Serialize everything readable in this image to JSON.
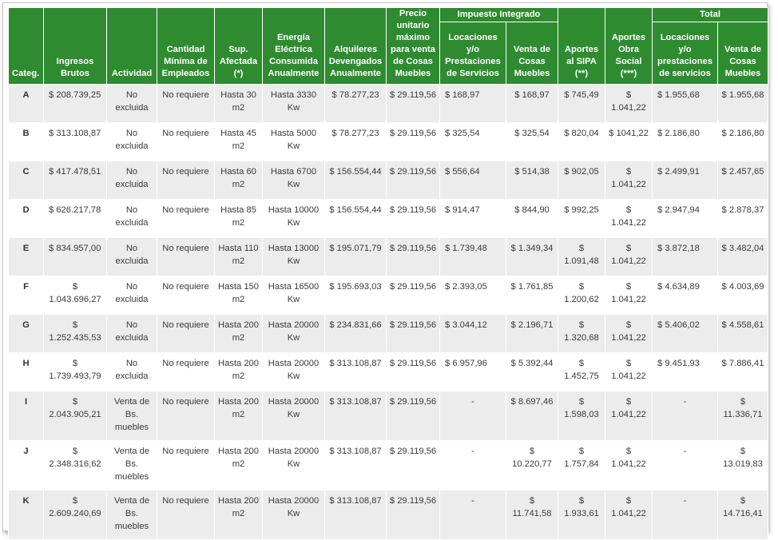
{
  "headers": {
    "categ": "Categ.",
    "ingresos": "Ingresos Brutos",
    "actividad": "Actividad",
    "cantidad": "Cantidad Mínima de Empleados",
    "sup": "Sup. Afectada (*)",
    "energia": "Energía Eléctrica Consumida Anualmente",
    "alquileres": "Alquileres Devengados Anualmente",
    "precio": "Precio unitario máximo para venta de Cosas Muebles",
    "impuesto_group": "Impuesto Integrado",
    "imp_locaciones": "Locaciones y/o Prestaciones de Servicios",
    "imp_venta": "Venta de Cosas Muebles",
    "sipa": "Aportes al SIPA (**)",
    "obra": "Aportes Obra Social (***)",
    "total_group": "Total",
    "tot_locaciones": "Locaciones y/o prestaciones de servicios",
    "tot_venta": "Venta de Cosas Muebles"
  },
  "rows": [
    {
      "cat": "A",
      "ingresos": "$ 208.739,25",
      "actividad": "No excluida",
      "empleados": "No requiere",
      "sup": "Hasta 30 m2",
      "energia": "Hasta 3330 Kw",
      "alquileres": "$ 78.277,23",
      "precio": "$ 29.119,56",
      "imp_loc": "$ 168,97",
      "imp_venta": "$ 168,97",
      "sipa": "$ 745,49",
      "obra": "$ 1.041,22",
      "tot_loc": "$ 1.955,68",
      "tot_venta": "$ 1.955,68"
    },
    {
      "cat": "B",
      "ingresos": "$ 313.108,87",
      "actividad": "No excluida",
      "empleados": "No requiere",
      "sup": "Hasta 45 m2",
      "energia": "Hasta 5000 Kw",
      "alquileres": "$ 78.277,23",
      "precio": "$ 29.119,56",
      "imp_loc": "$ 325,54",
      "imp_venta": "$ 325,54",
      "sipa": "$ 820,04",
      "obra": "$ 1041,22",
      "tot_loc": "$ 2.186,80",
      "tot_venta": "$ 2.186,80"
    },
    {
      "cat": "C",
      "ingresos": "$ 417.478,51",
      "actividad": "No excluida",
      "empleados": "No requiere",
      "sup": "Hasta 60 m2",
      "energia": "Hasta 6700 Kw",
      "alquileres": "$ 156.554,44",
      "precio": "$ 29.119,56",
      "imp_loc": "$ 556,64",
      "imp_venta": "$ 514,38",
      "sipa": "$ 902,05",
      "obra": "$ 1.041,22",
      "tot_loc": "$ 2.499,91",
      "tot_venta": "$ 2.457,65"
    },
    {
      "cat": "D",
      "ingresos": "$ 626.217,78",
      "actividad": "No excluida",
      "empleados": "No requiere",
      "sup": "Hasta 85 m2",
      "energia": "Hasta 10000 Kw",
      "alquileres": "$ 156.554,44",
      "precio": "$ 29.119,56",
      "imp_loc": "$ 914,47",
      "imp_venta": "$ 844,90",
      "sipa": "$ 992,25",
      "obra": "$ 1.041,22",
      "tot_loc": "$ 2.947,94",
      "tot_venta": "$ 2.878,37"
    },
    {
      "cat": "E",
      "ingresos": "$ 834.957,00",
      "actividad": "No excluida",
      "empleados": "No requiere",
      "sup": "Hasta 110 m2",
      "energia": "Hasta 13000 Kw",
      "alquileres": "$ 195.071,79",
      "precio": "$ 29.119,56",
      "imp_loc": "$ 1.739,48",
      "imp_venta": "$ 1.349,34",
      "sipa": "$ 1.091,48",
      "obra": "$ 1.041,22",
      "tot_loc": "$ 3.872,18",
      "tot_venta": "$ 3.482,04"
    },
    {
      "cat": "F",
      "ingresos": "$ 1.043.696,27",
      "actividad": "No excluida",
      "empleados": "No requiere",
      "sup": "Hasta 150 m2",
      "energia": "Hasta 16500 Kw",
      "alquileres": "$ 195.693,03",
      "precio": "$ 29.119,56",
      "imp_loc": "$ 2.393,05",
      "imp_venta": "$ 1.761,85",
      "sipa": "$ 1.200,62",
      "obra": "$ 1.041,22",
      "tot_loc": "$ 4.634,89",
      "tot_venta": "$ 4.003,69"
    },
    {
      "cat": "G",
      "ingresos": "$ 1.252.435,53",
      "actividad": "No excluida",
      "empleados": "No requiere",
      "sup": "Hasta 200 m2",
      "energia": "Hasta 20000 Kw",
      "alquileres": "$ 234.831,66",
      "precio": "$ 29.119,56",
      "imp_loc": "$ 3.044,12",
      "imp_venta": "$ 2.196,71",
      "sipa": "$ 1.320,68",
      "obra": "$ 1.041,22",
      "tot_loc": "$ 5.406,02",
      "tot_venta": "$ 4.558,61"
    },
    {
      "cat": "H",
      "ingresos": "$ 1.739.493,79",
      "actividad": "No excluida",
      "empleados": "No requiere",
      "sup": "Hasta 200 m2",
      "energia": "Hasta 20000 Kw",
      "alquileres": "$ 313.108,87",
      "precio": "$ 29.119,56",
      "imp_loc": "$ 6.957,96",
      "imp_venta": "$ 5.392,44",
      "sipa": "$ 1.452,75",
      "obra": "$ 1.041,22",
      "tot_loc": "$ 9.451,93",
      "tot_venta": "$ 7.886,41"
    },
    {
      "cat": "I",
      "ingresos": "$ 2.043.905,21",
      "actividad": "Venta de Bs. muebles",
      "empleados": "No requiere",
      "sup": "Hasta 200 m2",
      "energia": "Hasta 20000 Kw",
      "alquileres": "$ 313.108,87",
      "precio": "$ 29.119,56",
      "imp_loc": "-",
      "imp_venta": "$ 8.697,46",
      "sipa": "$ 1.598,03",
      "obra": "$ 1.041,22",
      "tot_loc": "-",
      "tot_venta": "$ 11.336,71"
    },
    {
      "cat": "J",
      "ingresos": "$ 2.348.316,62",
      "actividad": "Venta de Bs. muebles",
      "empleados": "No requiere",
      "sup": "Hasta 200 m2",
      "energia": "Hasta 20000 Kw",
      "alquileres": "$ 313.108,87",
      "precio": "$ 29.119,56",
      "imp_loc": "-",
      "imp_venta": "$ 10.220,77",
      "sipa": "$ 1.757,84",
      "obra": "$ 1.041,22",
      "tot_loc": "-",
      "tot_venta": "$ 13.019,83"
    },
    {
      "cat": "K",
      "ingresos": "$ 2.609.240,69",
      "actividad": "Venta de Bs. muebles",
      "empleados": "No requiere",
      "sup": "Hasta 200 m2",
      "energia": "Hasta 20000 Kw",
      "alquileres": "$ 313.108,87",
      "precio": "$ 29.119,56",
      "imp_loc": "-",
      "imp_venta": "$ 11.741,58",
      "sipa": "$ 1.933,61",
      "obra": "$ 1.041,22",
      "tot_loc": "-",
      "tot_venta": "$ 14.716,41"
    }
  ]
}
